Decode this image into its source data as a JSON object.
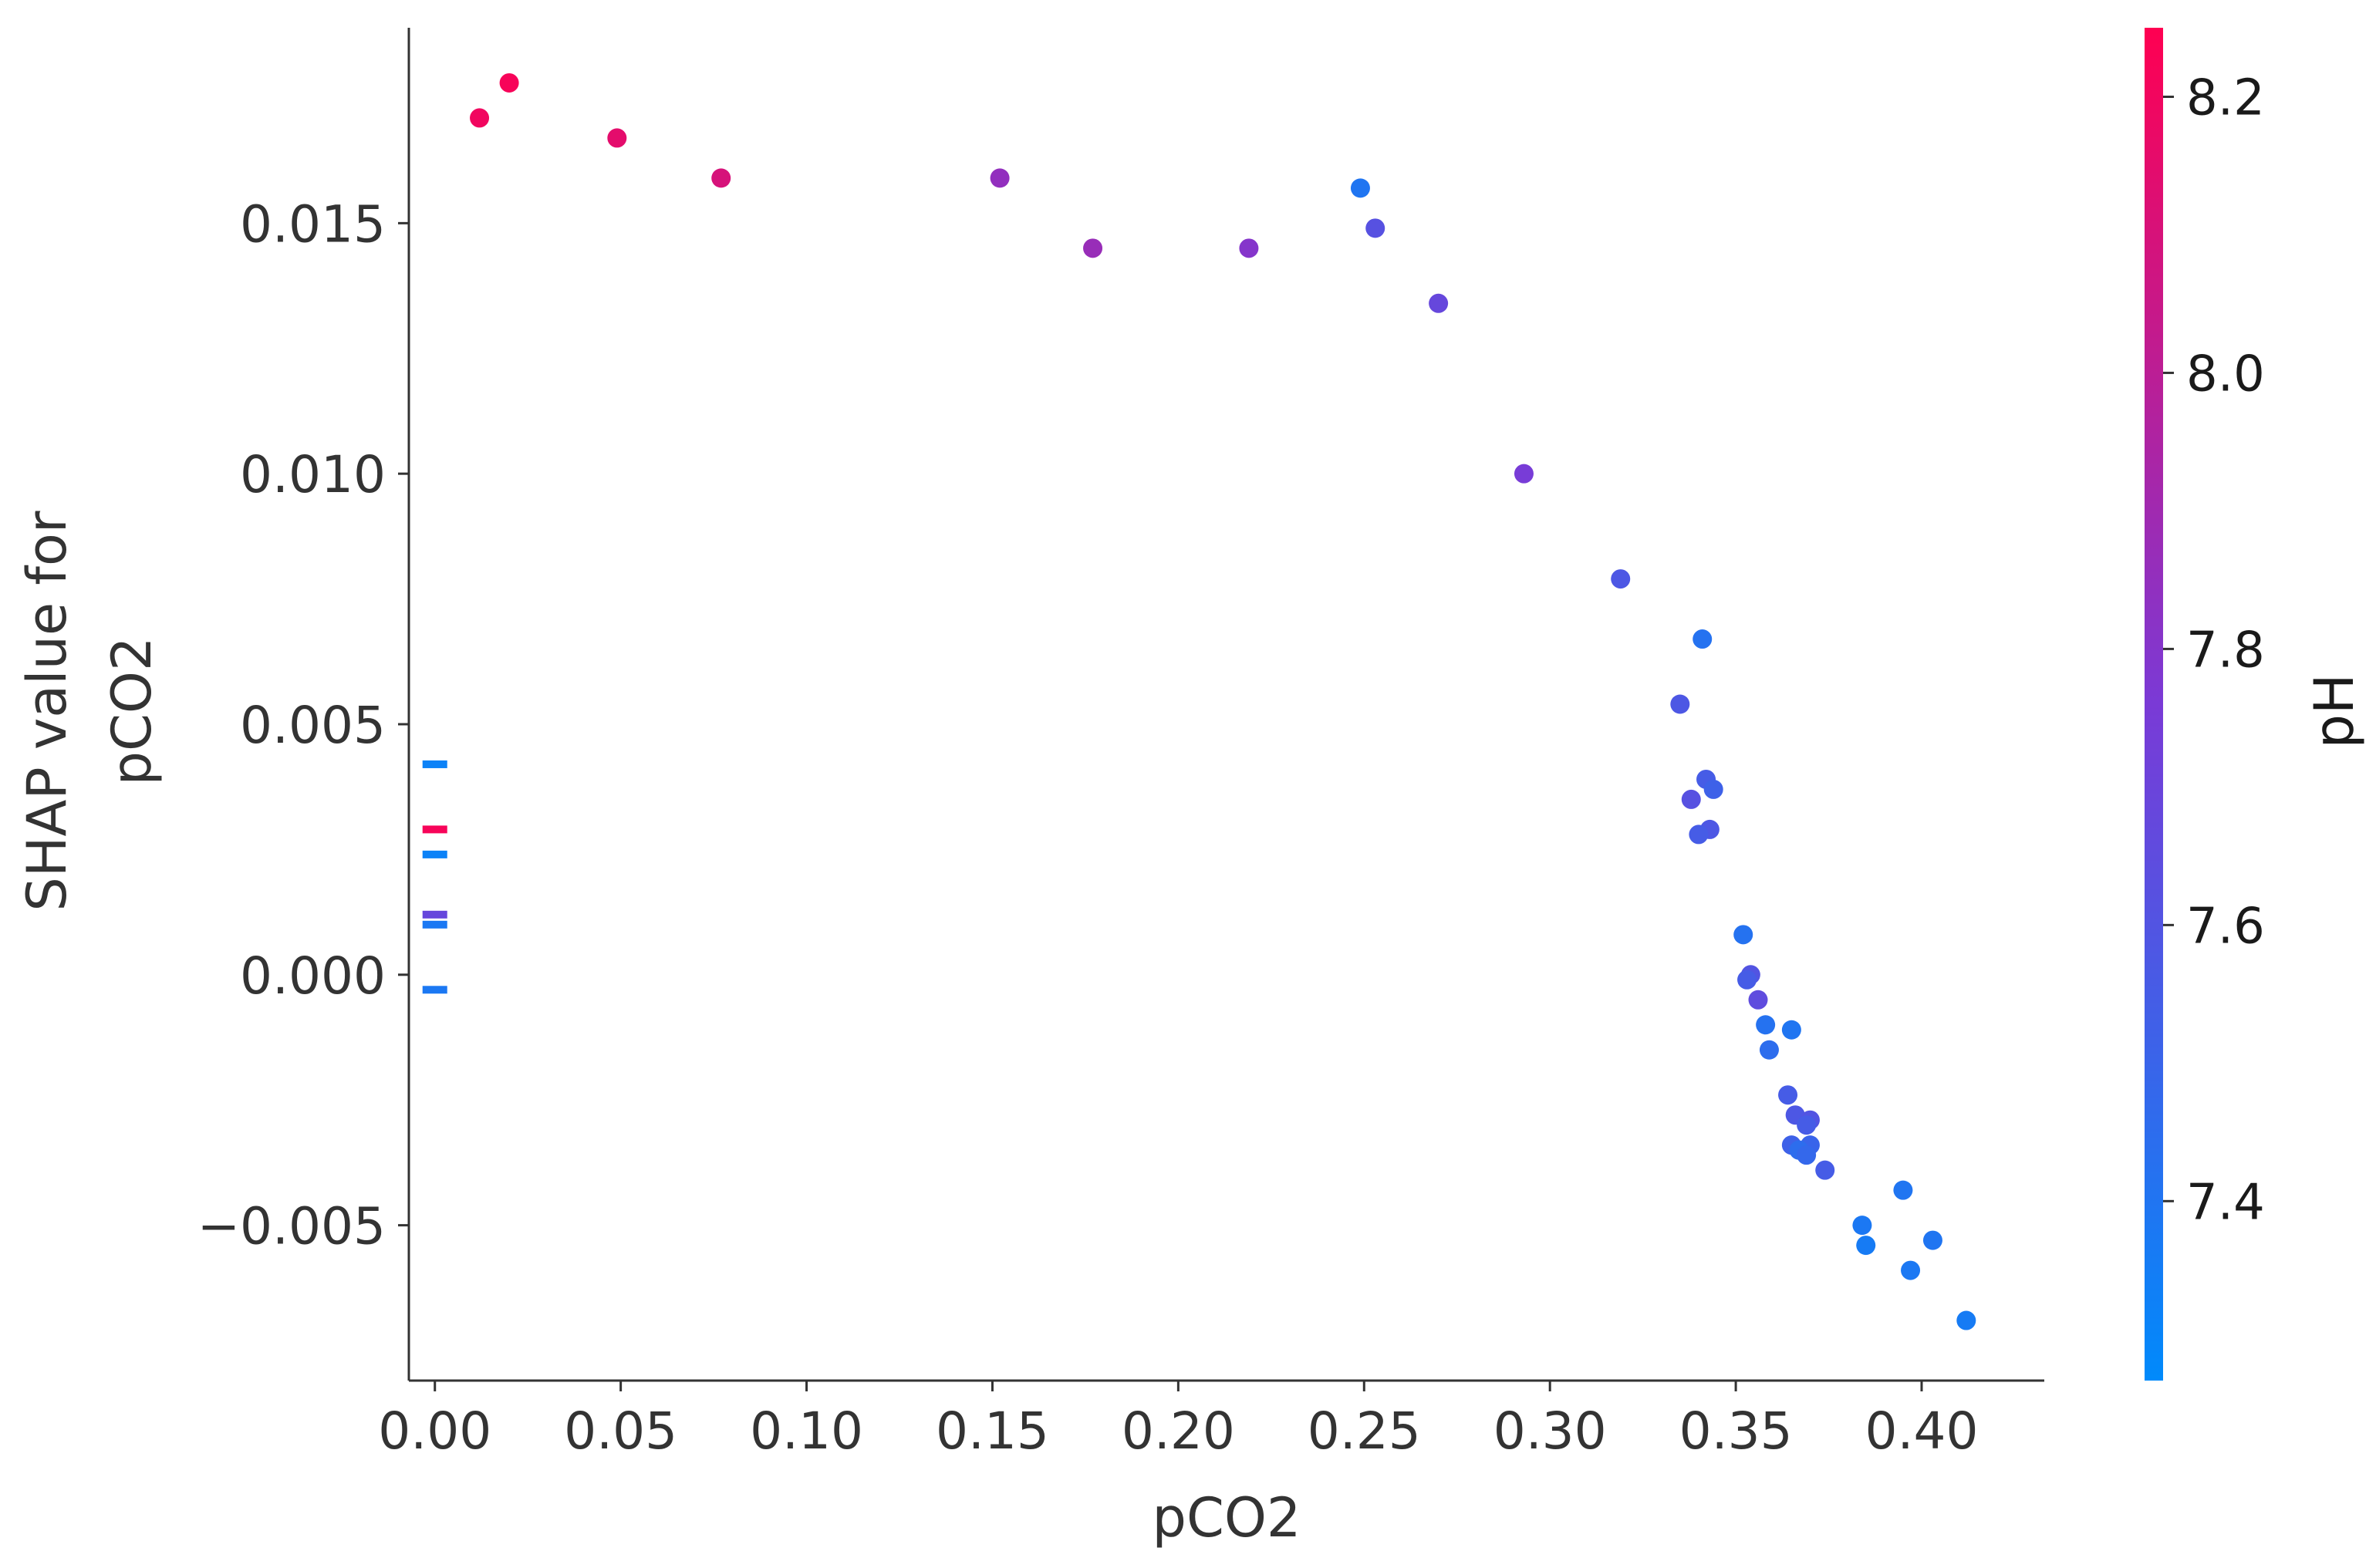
{
  "chart_data": {
    "type": "scatter",
    "title": "",
    "xlabel": "pCO2",
    "ylabel_lines": [
      "SHAP value for",
      "pCO2"
    ],
    "xlim": [
      -0.007,
      0.433
    ],
    "ylim": [
      -0.0081,
      0.0189
    ],
    "x_ticks": [
      0.0,
      0.05,
      0.1,
      0.15,
      0.2,
      0.25,
      0.3,
      0.35,
      0.4
    ],
    "x_tick_labels": [
      "0.00",
      "0.05",
      "0.10",
      "0.15",
      "0.20",
      "0.25",
      "0.30",
      "0.35",
      "0.40"
    ],
    "y_ticks": [
      -0.005,
      0.0,
      0.005,
      0.01,
      0.015
    ],
    "y_tick_labels": [
      "−0.005",
      "0.000",
      "0.005",
      "0.010",
      "0.015"
    ],
    "grid": false,
    "colorbar": {
      "label": "pH",
      "range": [
        7.27,
        8.25
      ],
      "ticks": [
        7.4,
        7.6,
        7.8,
        8.0,
        8.2
      ],
      "tick_labels": [
        "7.4",
        "7.6",
        "7.8",
        "8.0",
        "8.2"
      ],
      "colormap": [
        "#008afb",
        "#7a3ad6",
        "#ff0051"
      ]
    },
    "points": [
      {
        "x": 0.012,
        "y": 0.0171,
        "c": 8.2
      },
      {
        "x": 0.02,
        "y": 0.0178,
        "c": 8.22
      },
      {
        "x": 0.049,
        "y": 0.0167,
        "c": 8.15
      },
      {
        "x": 0.077,
        "y": 0.0159,
        "c": 8.1
      },
      {
        "x": 0.152,
        "y": 0.0159,
        "c": 7.85
      },
      {
        "x": 0.177,
        "y": 0.0145,
        "c": 7.87
      },
      {
        "x": 0.219,
        "y": 0.0145,
        "c": 7.8
      },
      {
        "x": 0.249,
        "y": 0.0157,
        "c": 7.4
      },
      {
        "x": 0.253,
        "y": 0.0149,
        "c": 7.62
      },
      {
        "x": 0.27,
        "y": 0.0134,
        "c": 7.68
      },
      {
        "x": 0.293,
        "y": 0.01,
        "c": 7.75
      },
      {
        "x": 0.319,
        "y": 0.0079,
        "c": 7.58
      },
      {
        "x": 0.341,
        "y": 0.0067,
        "c": 7.42
      },
      {
        "x": 0.335,
        "y": 0.0054,
        "c": 7.58
      },
      {
        "x": 0.342,
        "y": 0.0039,
        "c": 7.55
      },
      {
        "x": 0.344,
        "y": 0.0037,
        "c": 7.52
      },
      {
        "x": 0.338,
        "y": 0.0035,
        "c": 7.62
      },
      {
        "x": 0.343,
        "y": 0.0029,
        "c": 7.58
      },
      {
        "x": 0.34,
        "y": 0.0028,
        "c": 7.55
      },
      {
        "x": 0.352,
        "y": 0.0008,
        "c": 7.42
      },
      {
        "x": 0.354,
        "y": 0.0,
        "c": 7.6
      },
      {
        "x": 0.353,
        "y": -0.0001,
        "c": 7.55
      },
      {
        "x": 0.356,
        "y": -0.0005,
        "c": 7.65
      },
      {
        "x": 0.358,
        "y": -0.001,
        "c": 7.42
      },
      {
        "x": 0.365,
        "y": -0.0011,
        "c": 7.4
      },
      {
        "x": 0.359,
        "y": -0.0015,
        "c": 7.45
      },
      {
        "x": 0.364,
        "y": -0.0024,
        "c": 7.55
      },
      {
        "x": 0.366,
        "y": -0.0028,
        "c": 7.58
      },
      {
        "x": 0.37,
        "y": -0.0029,
        "c": 7.6
      },
      {
        "x": 0.369,
        "y": -0.003,
        "c": 7.55
      },
      {
        "x": 0.365,
        "y": -0.0034,
        "c": 7.52
      },
      {
        "x": 0.37,
        "y": -0.0034,
        "c": 7.5
      },
      {
        "x": 0.367,
        "y": -0.0035,
        "c": 7.45
      },
      {
        "x": 0.369,
        "y": -0.0036,
        "c": 7.48
      },
      {
        "x": 0.374,
        "y": -0.0039,
        "c": 7.55
      },
      {
        "x": 0.395,
        "y": -0.0043,
        "c": 7.4
      },
      {
        "x": 0.384,
        "y": -0.005,
        "c": 7.38
      },
      {
        "x": 0.403,
        "y": -0.0053,
        "c": 7.4
      },
      {
        "x": 0.385,
        "y": -0.0054,
        "c": 7.36
      },
      {
        "x": 0.397,
        "y": -0.0059,
        "c": 7.38
      },
      {
        "x": 0.412,
        "y": -0.0069,
        "c": 7.36
      }
    ],
    "zero_markers": [
      {
        "x": 0.0,
        "y": 0.0042,
        "c": 7.32
      },
      {
        "x": 0.0,
        "y": 0.0029,
        "c": 8.22
      },
      {
        "x": 0.0,
        "y": 0.0024,
        "c": 7.32
      },
      {
        "x": 0.0,
        "y": 0.0012,
        "c": 7.68
      },
      {
        "x": 0.0,
        "y": 0.001,
        "c": 7.38
      },
      {
        "x": 0.0,
        "y": -0.0003,
        "c": 7.38
      }
    ]
  }
}
